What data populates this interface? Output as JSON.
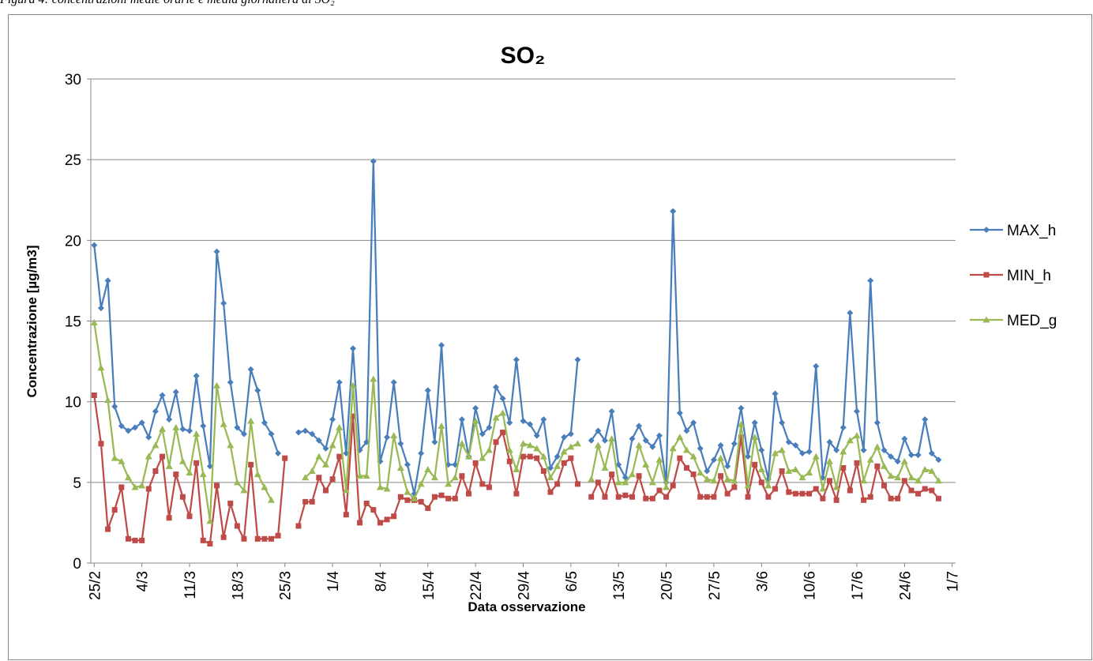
{
  "chart_data": {
    "type": "line",
    "caption": "Figura 4: concentrazioni medie orarie e media giornaliera di SO₂",
    "title": "SO₂",
    "x_label": "Data osservazione",
    "y_label": "Concentrazione [µg/m3]",
    "categories": [
      "25/2",
      null,
      null,
      null,
      null,
      null,
      null,
      "4/3",
      null,
      null,
      null,
      null,
      null,
      null,
      "11/3",
      null,
      null,
      null,
      null,
      null,
      null,
      "18/3",
      null,
      null,
      null,
      null,
      null,
      null,
      "25/3",
      null,
      null,
      null,
      null,
      null,
      null,
      "1/4",
      null,
      null,
      null,
      null,
      null,
      null,
      "8/4",
      null,
      null,
      null,
      null,
      null,
      null,
      "15/4",
      null,
      null,
      null,
      null,
      null,
      null,
      "22/4",
      null,
      null,
      null,
      null,
      null,
      null,
      "29/4",
      null,
      null,
      null,
      null,
      null,
      null,
      "6/5",
      null,
      null,
      null,
      null,
      null,
      null,
      "13/5",
      null,
      null,
      null,
      null,
      null,
      null,
      "20/5",
      null,
      null,
      null,
      null,
      null,
      null,
      "27/5",
      null,
      null,
      null,
      null,
      null,
      null,
      "3/6",
      null,
      null,
      null,
      null,
      null,
      null,
      "10/6",
      null,
      null,
      null,
      null,
      null,
      null,
      "17/6",
      null,
      null,
      null,
      null,
      null,
      null,
      "24/6",
      null,
      null,
      null,
      null,
      null,
      null,
      "1/7"
    ],
    "series": [
      {
        "name": "MAX_h",
        "color": "#4a7ebb",
        "marker": "diamond",
        "values": [
          19.7,
          15.8,
          17.5,
          9.7,
          8.5,
          8.2,
          8.4,
          8.7,
          7.8,
          9.4,
          10.4,
          8.9,
          10.6,
          8.3,
          8.2,
          11.6,
          8.5,
          6.0,
          19.3,
          16.1,
          11.2,
          8.4,
          8.0,
          12.0,
          10.7,
          8.7,
          8.0,
          6.8,
          null,
          null,
          8.1,
          8.2,
          8.0,
          7.6,
          7.1,
          8.9,
          11.2,
          6.8,
          13.3,
          7.0,
          7.5,
          24.9,
          6.3,
          7.8,
          11.2,
          7.4,
          6.1,
          4.3,
          6.8,
          10.7,
          7.5,
          13.5,
          6.1,
          6.1,
          8.9,
          6.6,
          9.6,
          8.0,
          8.4,
          10.9,
          10.2,
          8.7,
          12.6,
          8.8,
          8.6,
          7.9,
          8.9,
          5.9,
          6.6,
          7.8,
          8.0,
          12.6,
          null,
          7.6,
          8.2,
          7.6,
          9.4,
          6.1,
          5.3,
          7.7,
          8.5,
          7.6,
          7.2,
          7.9,
          5.0,
          21.8,
          9.3,
          8.2,
          8.7,
          7.1,
          5.7,
          6.4,
          7.3,
          6.0,
          7.4,
          9.6,
          6.6,
          8.7,
          7.0,
          5.2,
          10.5,
          8.7,
          7.5,
          7.3,
          6.8,
          6.9,
          12.2,
          5.3,
          7.5,
          7.0,
          8.4,
          15.5,
          9.4,
          7.0,
          17.5,
          8.7,
          7.0,
          6.6,
          6.3,
          7.7,
          6.7,
          6.7,
          8.9,
          6.8,
          6.4,
          null,
          null
        ]
      },
      {
        "name": "MIN_h",
        "color": "#be4b48",
        "marker": "square",
        "values": [
          10.4,
          7.4,
          2.1,
          3.3,
          4.7,
          1.5,
          1.4,
          1.4,
          4.6,
          5.7,
          6.6,
          2.8,
          5.5,
          4.1,
          2.9,
          6.2,
          1.4,
          1.2,
          4.8,
          1.6,
          3.7,
          2.3,
          1.5,
          6.1,
          1.5,
          1.5,
          1.5,
          1.7,
          6.5,
          null,
          2.3,
          3.8,
          3.8,
          5.3,
          4.5,
          5.2,
          6.6,
          3.0,
          9.1,
          2.5,
          3.7,
          3.3,
          2.5,
          2.7,
          2.9,
          4.1,
          3.9,
          3.9,
          3.8,
          3.4,
          4.1,
          4.2,
          4.0,
          4.0,
          5.4,
          4.3,
          6.2,
          4.9,
          4.7,
          7.5,
          8.1,
          6.3,
          4.3,
          6.6,
          6.6,
          6.5,
          5.7,
          4.4,
          4.9,
          6.2,
          6.5,
          4.9,
          null,
          4.1,
          5.0,
          4.1,
          5.5,
          4.1,
          4.2,
          4.1,
          5.4,
          4.0,
          4.0,
          4.5,
          4.1,
          4.8,
          6.5,
          5.9,
          5.5,
          4.1,
          4.1,
          4.1,
          5.4,
          4.3,
          4.7,
          7.8,
          4.1,
          6.1,
          5.0,
          4.1,
          4.6,
          5.7,
          4.4,
          4.3,
          4.3,
          4.3,
          4.6,
          4.0,
          5.1,
          3.9,
          5.9,
          4.5,
          6.2,
          3.9,
          4.1,
          6.0,
          4.8,
          4.0,
          4.0,
          5.1,
          4.5,
          4.3,
          4.6,
          4.5,
          4.0,
          null,
          null
        ]
      },
      {
        "name": "MED_g",
        "color": "#98b954",
        "marker": "triangle",
        "values": [
          14.9,
          12.1,
          10.1,
          6.5,
          6.3,
          5.3,
          4.7,
          4.8,
          6.6,
          7.3,
          8.3,
          6.0,
          8.4,
          6.3,
          5.6,
          8.0,
          5.5,
          2.6,
          11.0,
          8.6,
          7.3,
          5.0,
          4.5,
          8.8,
          5.5,
          4.7,
          3.9,
          null,
          null,
          null,
          null,
          5.3,
          5.7,
          6.6,
          6.1,
          7.3,
          8.4,
          4.5,
          11.0,
          5.4,
          5.4,
          11.4,
          4.7,
          4.6,
          7.9,
          5.9,
          4.4,
          4.0,
          4.9,
          5.8,
          5.3,
          8.5,
          4.9,
          5.3,
          7.4,
          6.6,
          8.8,
          6.5,
          7.0,
          9.0,
          9.3,
          7.0,
          5.8,
          7.4,
          7.3,
          7.1,
          6.6,
          5.3,
          6.0,
          6.9,
          7.2,
          7.4,
          null,
          5.2,
          7.3,
          5.9,
          7.7,
          5.0,
          5.0,
          5.5,
          7.3,
          6.1,
          5.0,
          6.4,
          4.7,
          7.1,
          7.8,
          7.0,
          6.6,
          5.6,
          5.2,
          5.1,
          6.5,
          5.2,
          5.1,
          8.6,
          4.8,
          7.8,
          5.8,
          4.8,
          6.8,
          7.0,
          5.7,
          5.8,
          5.3,
          5.6,
          6.6,
          4.6,
          6.3,
          4.7,
          6.9,
          7.6,
          7.9,
          5.1,
          6.4,
          7.2,
          6.0,
          5.4,
          5.3,
          6.3,
          5.3,
          5.1,
          5.8,
          5.7,
          5.1,
          null,
          null
        ]
      }
    ],
    "ylim": [
      0,
      30
    ],
    "yticks": [
      0,
      5,
      10,
      15,
      20,
      25,
      30
    ],
    "grid": true,
    "legend": "right"
  }
}
